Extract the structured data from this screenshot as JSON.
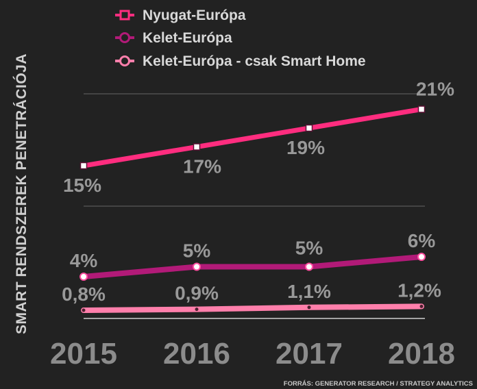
{
  "chart_data": {
    "type": "line",
    "ylabel": "SMART RENDSZEREK PENETRÁCIÓJA",
    "x": [
      "2015",
      "2016",
      "2017",
      "2018"
    ],
    "series": [
      {
        "name": "Nyugat-Európa",
        "values": [
          15,
          17,
          19,
          21
        ],
        "labels": [
          "15%",
          "17%",
          "19%",
          "21%"
        ],
        "color": "#ff2d7f",
        "marker": "square"
      },
      {
        "name": "Kelet-Európa",
        "values": [
          4,
          5,
          5,
          6
        ],
        "labels": [
          "4%",
          "5%",
          "5%",
          "6%"
        ],
        "color": "#b21a78",
        "marker": "circle"
      },
      {
        "name": "Kelet-Európa - csak Smart Home",
        "values": [
          0.8,
          0.9,
          1.1,
          1.2
        ],
        "labels": [
          "0,8%",
          "0,9%",
          "1,1%",
          "1,2%"
        ],
        "color": "#ff7fab",
        "marker": "circle"
      }
    ],
    "grid": true,
    "legend_position": "top-left",
    "source": "FORRÁS: GENERATOR RESEARCH / STRATEGY ANALYTICS"
  }
}
